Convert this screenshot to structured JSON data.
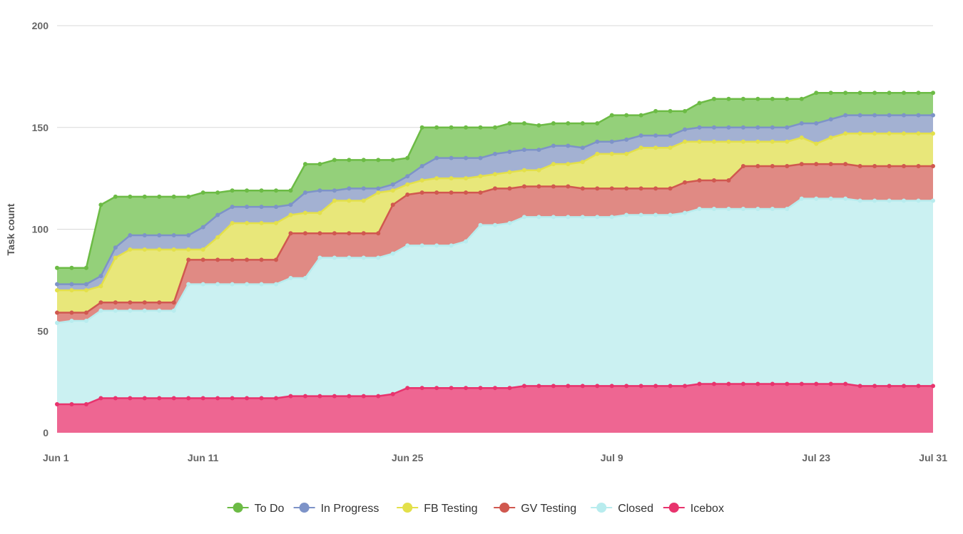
{
  "chart_data": {
    "type": "area",
    "stacked": true,
    "ylabel": "Task count",
    "ylim": [
      0,
      200
    ],
    "y_ticks": [
      "0",
      "50",
      "100",
      "150",
      "200"
    ],
    "x_start_index": 0,
    "x_end_index": 60,
    "x_ticks": [
      {
        "label": "Jun 1",
        "index": 0
      },
      {
        "label": "Jun 11",
        "index": 10
      },
      {
        "label": "Jun 25",
        "index": 24
      },
      {
        "label": "Jul 9",
        "index": 38
      },
      {
        "label": "Jul 23",
        "index": 52
      },
      {
        "label": "Jul 31",
        "index": 60
      }
    ],
    "legend_position": "bottom-center",
    "series": [
      {
        "name": "Icebox",
        "color": "#e8336d",
        "fill": "#ee6692",
        "cumulative": [
          14,
          14,
          14,
          17,
          17,
          17,
          17,
          17,
          17,
          17,
          17,
          17,
          17,
          17,
          17,
          17,
          18,
          18,
          18,
          18,
          18,
          18,
          18,
          19,
          22,
          22,
          22,
          22,
          22,
          22,
          22,
          22,
          23,
          23,
          23,
          23,
          23,
          23,
          23,
          23,
          23,
          23,
          23,
          23,
          24,
          24,
          24,
          24,
          24,
          24,
          24,
          24,
          24,
          24,
          24,
          23,
          23,
          23,
          23,
          23,
          23
        ]
      },
      {
        "name": "Closed",
        "color": "#b8ecee",
        "fill": "#cbf1f2",
        "cumulative": [
          54,
          55,
          55,
          60,
          60,
          60,
          60,
          60,
          60,
          73,
          73,
          73,
          73,
          73,
          73,
          73,
          76,
          76,
          86,
          86,
          86,
          86,
          86,
          88,
          92,
          92,
          92,
          92,
          94,
          102,
          102,
          103,
          106,
          106,
          106,
          106,
          106,
          106,
          106,
          107,
          107,
          107,
          107,
          108,
          110,
          110,
          110,
          110,
          110,
          110,
          110,
          115,
          115,
          115,
          115,
          114,
          114,
          114,
          114,
          114,
          114
        ]
      },
      {
        "name": "GV Testing",
        "color": "#d0584f",
        "fill": "#e08a84",
        "cumulative": [
          59,
          59,
          59,
          64,
          64,
          64,
          64,
          64,
          64,
          85,
          85,
          85,
          85,
          85,
          85,
          85,
          98,
          98,
          98,
          98,
          98,
          98,
          98,
          112,
          117,
          118,
          118,
          118,
          118,
          118,
          120,
          120,
          121,
          121,
          121,
          121,
          120,
          120,
          120,
          120,
          120,
          120,
          120,
          123,
          124,
          124,
          124,
          131,
          131,
          131,
          131,
          132,
          132,
          132,
          132,
          131,
          131,
          131,
          131,
          131,
          131
        ]
      },
      {
        "name": "FB Testing",
        "color": "#e3e04a",
        "fill": "#e8e77a",
        "cumulative": [
          70,
          70,
          70,
          72,
          86,
          90,
          90,
          90,
          90,
          90,
          90,
          96,
          103,
          103,
          103,
          103,
          107,
          108,
          108,
          114,
          114,
          114,
          118,
          119,
          122,
          124,
          125,
          125,
          125,
          126,
          127,
          128,
          129,
          129,
          132,
          132,
          133,
          137,
          137,
          137,
          140,
          140,
          140,
          143,
          143,
          143,
          143,
          143,
          143,
          143,
          143,
          145,
          142,
          145,
          147,
          147,
          147,
          147,
          147,
          147,
          147
        ]
      },
      {
        "name": "In Progress",
        "color": "#7d93c8",
        "fill": "#a3b1d2",
        "cumulative": [
          73,
          73,
          73,
          77,
          91,
          97,
          97,
          97,
          97,
          97,
          101,
          107,
          111,
          111,
          111,
          111,
          112,
          118,
          119,
          119,
          120,
          120,
          120,
          122,
          126,
          131,
          135,
          135,
          135,
          135,
          137,
          138,
          139,
          139,
          141,
          141,
          140,
          143,
          143,
          144,
          146,
          146,
          146,
          149,
          150,
          150,
          150,
          150,
          150,
          150,
          150,
          152,
          152,
          154,
          156,
          156,
          156,
          156,
          156,
          156,
          156
        ]
      },
      {
        "name": "To Do",
        "color": "#6cbb45",
        "fill": "#94d07a",
        "cumulative": [
          81,
          81,
          81,
          112,
          116,
          116,
          116,
          116,
          116,
          116,
          118,
          118,
          119,
          119,
          119,
          119,
          119,
          132,
          132,
          134,
          134,
          134,
          134,
          134,
          135,
          150,
          150,
          150,
          150,
          150,
          150,
          152,
          152,
          151,
          152,
          152,
          152,
          152,
          156,
          156,
          156,
          158,
          158,
          158,
          162,
          164,
          164,
          164,
          164,
          164,
          164,
          164,
          167,
          167,
          167,
          167,
          167,
          167,
          167,
          167,
          167
        ]
      }
    ],
    "legend": [
      "To Do",
      "In Progress",
      "FB Testing",
      "GV Testing",
      "Closed",
      "Icebox"
    ]
  }
}
